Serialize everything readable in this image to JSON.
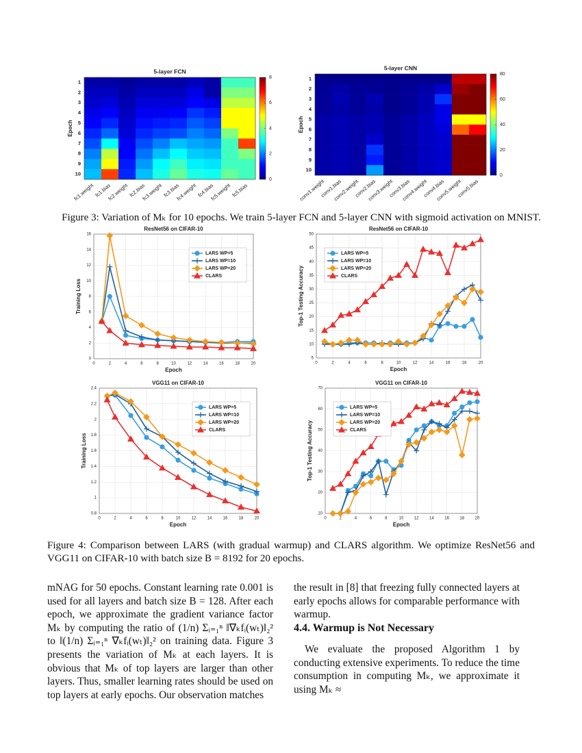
{
  "chart_data": [
    {
      "type": "heatmap",
      "title": "5-layer FCN",
      "ylabel": "Epoch",
      "colormap": "jet",
      "x_categories": [
        "fc1.weight",
        "fc1.bias",
        "fc2.weight",
        "fc2.bias",
        "fc3.weight",
        "fc3.bias",
        "fc4.weight",
        "fc4.bias",
        "fc5.weight",
        "fc5.bias"
      ],
      "y_categories": [
        "1",
        "2",
        "3",
        "4",
        "5",
        "6",
        "7",
        "8",
        "9",
        "10"
      ],
      "values": [
        [
          0.3,
          0.3,
          0.2,
          0.3,
          0.3,
          0.3,
          0.5,
          0.3,
          3.5,
          3.5
        ],
        [
          0.5,
          0.5,
          0.3,
          0.5,
          0.5,
          0.5,
          0.8,
          0.3,
          4,
          4
        ],
        [
          0.6,
          0.7,
          0.4,
          0.7,
          0.7,
          0.7,
          1.0,
          0.8,
          4.5,
          4.5
        ],
        [
          0.8,
          1.0,
          0.5,
          0.9,
          0.9,
          1.0,
          1.4,
          1.2,
          5,
          5
        ],
        [
          1.0,
          1.3,
          0.6,
          1.1,
          1.2,
          1.3,
          1.7,
          1.5,
          5,
          5
        ],
        [
          1.3,
          1.8,
          0.7,
          1.3,
          1.5,
          1.6,
          2.0,
          1.8,
          4,
          5
        ],
        [
          1.6,
          3,
          0.9,
          1.6,
          2,
          2.5,
          2.3,
          2.2,
          3.5,
          6.5
        ],
        [
          2,
          4.5,
          1.0,
          1.9,
          2.5,
          3,
          2.6,
          2.5,
          3.5,
          4
        ],
        [
          2.3,
          5,
          1.2,
          2.2,
          3,
          3.5,
          2.9,
          2.8,
          3.5,
          3.5
        ],
        [
          2.5,
          6.5,
          1.3,
          2.5,
          3.2,
          3.8,
          3.2,
          3.1,
          3.8,
          3.5
        ]
      ],
      "zlim": [
        0,
        8
      ],
      "zticks": [
        0,
        2,
        4,
        6,
        8
      ]
    },
    {
      "type": "heatmap",
      "title": "5-layer CNN",
      "ylabel": "Epoch",
      "colormap": "jet",
      "x_categories": [
        "conv1.weight",
        "conv1.bias",
        "conv2.weight",
        "conv2.bias",
        "conv3.weight",
        "conv3.bias",
        "conv4.weight",
        "conv4.bias",
        "conv5.weight",
        "conv5.bias"
      ],
      "y_categories": [
        "1",
        "2",
        "3",
        "4",
        "5",
        "6",
        "7",
        "8",
        "9",
        "10"
      ],
      "values": [
        [
          1,
          1,
          1,
          1,
          1,
          1,
          1,
          1,
          75,
          75
        ],
        [
          2,
          3,
          2,
          2,
          1,
          2,
          3,
          6,
          78,
          80
        ],
        [
          2,
          4,
          2,
          4,
          1,
          2,
          4,
          14,
          80,
          80
        ],
        [
          2,
          3,
          2,
          3,
          1,
          2,
          4,
          8,
          80,
          80
        ],
        [
          3,
          4,
          3,
          4,
          2,
          3,
          5,
          8,
          50,
          50
        ],
        [
          3,
          4,
          3,
          4,
          2,
          3,
          5,
          7,
          62,
          70
        ],
        [
          3,
          4,
          3,
          6,
          2,
          3,
          5,
          6,
          80,
          80
        ],
        [
          3,
          4,
          3,
          14,
          2,
          3,
          5,
          6,
          80,
          80
        ],
        [
          3,
          4,
          3,
          12,
          2,
          3,
          5,
          6,
          80,
          80
        ],
        [
          3,
          4,
          3,
          22,
          2,
          3,
          5,
          6,
          80,
          80
        ]
      ],
      "zlim": [
        0,
        80
      ],
      "zticks": [
        0,
        20,
        40,
        60,
        80
      ]
    },
    {
      "type": "line",
      "title": "ResNet56 on CIFAR-10",
      "xlabel": "Epoch",
      "ylabel": "Training Loss",
      "grid": true,
      "legend": "upper right",
      "x": [
        1,
        2,
        4,
        6,
        8,
        10,
        12,
        14,
        16,
        18,
        20
      ],
      "series": [
        {
          "name": "LARS WP=5",
          "color": "#3a9ee0",
          "marker": "o",
          "values": [
            4.8,
            8.0,
            3.0,
            2.6,
            2.4,
            2.3,
            2.2,
            2.1,
            2.1,
            2.2,
            2.2
          ]
        },
        {
          "name": "LARS WP=10",
          "color": "#1f5f9e",
          "marker": "+",
          "values": [
            4.8,
            11.8,
            3.6,
            2.8,
            2.4,
            2.3,
            2.2,
            2.1,
            2.0,
            2.0,
            2.0
          ]
        },
        {
          "name": "LARS WP=20",
          "color": "#f39a1e",
          "marker": "D",
          "values": [
            4.8,
            15.8,
            5.5,
            4.3,
            3.2,
            2.7,
            2.4,
            2.2,
            2.1,
            2.0,
            1.9
          ]
        },
        {
          "name": "CLARS",
          "color": "#e8302f",
          "marker": "^",
          "values": [
            4.8,
            3.6,
            2.0,
            1.8,
            1.7,
            1.6,
            1.5,
            1.5,
            1.4,
            1.4,
            1.3
          ]
        }
      ],
      "xlim": [
        0,
        20
      ],
      "xticks": [
        0,
        2,
        4,
        6,
        8,
        10,
        12,
        14,
        16,
        18,
        20
      ],
      "ylim": [
        0,
        16
      ],
      "yticks": [
        0,
        2,
        4,
        6,
        8,
        10,
        12,
        14,
        16
      ]
    },
    {
      "type": "line",
      "title": "ResNet56 on CIFAR-10",
      "xlabel": "Epoch",
      "ylabel": "Top-1 Testing Accuracy",
      "grid": true,
      "legend": "upper left",
      "x": [
        1,
        2,
        3,
        4,
        5,
        6,
        7,
        8,
        9,
        10,
        11,
        12,
        13,
        14,
        15,
        16,
        17,
        18,
        19,
        20
      ],
      "series": [
        {
          "name": "LARS WP=5",
          "color": "#3a9ee0",
          "marker": "o",
          "values": [
            10.5,
            10,
            10,
            10.5,
            10.5,
            10.5,
            10.5,
            10,
            10.5,
            10.5,
            10.5,
            10.5,
            12.5,
            11.5,
            16.5,
            17.5,
            16.5,
            16.5,
            19,
            12.5
          ]
        },
        {
          "name": "LARS WP=10",
          "color": "#1f5f9e",
          "marker": "+",
          "values": [
            10,
            10,
            10,
            10,
            10.5,
            10,
            10,
            10.5,
            10,
            10,
            10,
            10.5,
            12,
            17.5,
            17,
            22,
            27.5,
            30,
            31.5,
            26
          ]
        },
        {
          "name": "LARS WP=20",
          "color": "#f39a1e",
          "marker": "D",
          "values": [
            11,
            10,
            10.5,
            11.5,
            11.5,
            10,
            10,
            10,
            10,
            11,
            10,
            10.5,
            13,
            17,
            21,
            24,
            27,
            25,
            30,
            29
          ]
        },
        {
          "name": "CLARS",
          "color": "#e8302f",
          "marker": "^",
          "values": [
            15,
            17,
            20.5,
            21,
            22.5,
            25.5,
            28,
            31,
            34,
            35,
            39,
            35,
            44.5,
            43.5,
            43,
            36,
            46,
            45,
            46.5,
            48
          ]
        }
      ],
      "xlim": [
        0,
        20
      ],
      "xticks": [
        0,
        2,
        4,
        6,
        8,
        10,
        12,
        14,
        16,
        18,
        20
      ],
      "ylim": [
        5,
        50
      ],
      "yticks": [
        5,
        10,
        15,
        20,
        25,
        30,
        35,
        40,
        45,
        50
      ]
    },
    {
      "type": "line",
      "title": "VGG11 on CIFAR-10",
      "xlabel": "Epoch",
      "ylabel": "Training Loss",
      "grid": true,
      "legend": "upper right",
      "x": [
        1,
        2,
        4,
        6,
        8,
        10,
        12,
        14,
        16,
        18,
        20
      ],
      "series": [
        {
          "name": "LARS WP=5",
          "color": "#3a9ee0",
          "marker": "o",
          "values": [
            2.3,
            2.31,
            2.05,
            1.77,
            1.65,
            1.48,
            1.35,
            1.25,
            1.18,
            1.11,
            1.05
          ]
        },
        {
          "name": "LARS WP=10",
          "color": "#1f5f9e",
          "marker": "+",
          "values": [
            2.3,
            2.32,
            2.2,
            1.88,
            1.78,
            1.58,
            1.44,
            1.31,
            1.21,
            1.15,
            1.08
          ]
        },
        {
          "name": "LARS WP=20",
          "color": "#f39a1e",
          "marker": "D",
          "values": [
            2.3,
            2.34,
            2.23,
            2.03,
            1.78,
            1.68,
            1.57,
            1.45,
            1.35,
            1.26,
            1.17
          ]
        },
        {
          "name": "CLARS",
          "color": "#e8302f",
          "marker": "^",
          "values": [
            2.25,
            2.03,
            1.75,
            1.52,
            1.38,
            1.26,
            1.14,
            1.04,
            0.96,
            0.88,
            0.83
          ]
        }
      ],
      "xlim": [
        0,
        20
      ],
      "xticks": [
        0,
        2,
        4,
        6,
        8,
        10,
        12,
        14,
        16,
        18,
        20
      ],
      "ylim": [
        0.8,
        2.4
      ],
      "yticks": [
        0.8,
        1,
        1.2,
        1.4,
        1.6,
        1.8,
        2,
        2.2,
        2.4
      ]
    },
    {
      "type": "line",
      "title": "VGG11 on CIFAR-10",
      "xlabel": "Epoch",
      "ylabel": "Top-1 Testing Accuracy",
      "grid": true,
      "legend": "upper left",
      "x": [
        1,
        2,
        3,
        4,
        5,
        6,
        7,
        8,
        9,
        10,
        11,
        12,
        13,
        14,
        15,
        16,
        17,
        18,
        19,
        20
      ],
      "series": [
        {
          "name": "LARS WP=5",
          "color": "#3a9ee0",
          "marker": "o",
          "values": [
            10,
            10,
            21,
            23,
            29,
            28,
            35,
            35,
            31,
            33,
            45,
            50,
            52,
            54,
            52,
            52,
            58,
            61,
            63,
            63.5
          ]
        },
        {
          "name": "LARS WP=10",
          "color": "#1f5f9e",
          "marker": "+",
          "values": [
            10,
            10,
            20,
            21,
            28,
            30,
            35,
            19,
            30,
            35,
            44,
            40,
            50,
            54,
            53,
            51,
            55,
            59,
            59,
            58
          ]
        },
        {
          "name": "LARS WP=20",
          "color": "#f39a1e",
          "marker": "D",
          "values": [
            10,
            10,
            11,
            20,
            24,
            25,
            27,
            26,
            29,
            35,
            43,
            44,
            46,
            49,
            50,
            49,
            52,
            38,
            55,
            55.5
          ]
        },
        {
          "name": "CLARS",
          "color": "#e8302f",
          "marker": "^",
          "values": [
            22,
            24,
            29,
            35,
            39,
            42,
            48,
            48.5,
            53,
            54,
            57,
            61,
            60,
            62.5,
            63,
            62,
            65,
            68.5,
            68,
            67.5
          ]
        }
      ],
      "xlim": [
        0,
        20
      ],
      "xticks": [
        0,
        2,
        4,
        6,
        8,
        10,
        12,
        14,
        16,
        18,
        20
      ],
      "ylim": [
        10,
        70
      ],
      "yticks": [
        10,
        20,
        30,
        40,
        50,
        60,
        70
      ]
    }
  ],
  "figure3_caption": "Figure 3: Variation of Mₖ for 10 epochs. We train 5-layer FCN and 5-layer CNN with sigmoid activation on MNIST.",
  "figure4_caption": "Figure 4: Comparison between LARS (with gradual warmup) and CLARS algorithm. We optimize ResNet56 and VGG11 on CIFAR-10 with batch size B = 8192 for 20 epochs.",
  "left_column": "mNAG for 50 epochs. Constant learning rate 0.001 is used for all layers and batch size B = 128. After each epoch, we approximate the gradient variance factor Mₖ by computing the ratio of (1/n) Σᵢ₌₁ⁿ ‖∇ₖfᵢ(wₜ)‖₂² to ‖(1/n) Σᵢ₌₁ⁿ ∇ₖfᵢ(wₜ)‖₂² on training data. Figure 3 presents the variation of Mₖ at each layers. It is obvious that Mₖ of top layers are larger than other layers. Thus, smaller learning rates should be used on top layers at early epochs. Our observation matches",
  "right_column": {
    "paragraph_1": "the result in [8] that freezing fully connected layers at early epochs allows for comparable performance with warmup.",
    "heading": "4.4. Warmup is Not Necessary",
    "paragraph_2": "We evaluate the proposed Algorithm 1 by conducting extensive experiments. To reduce the time consumption in computing Mₖ, we approximate it using Mₖ ≈"
  }
}
